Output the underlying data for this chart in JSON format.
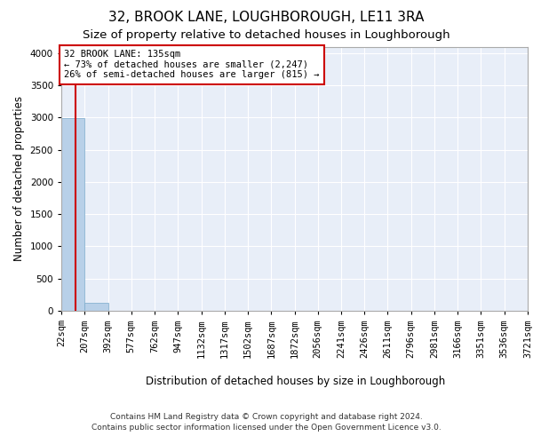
{
  "title": "32, BROOK LANE, LOUGHBOROUGH, LE11 3RA",
  "subtitle": "Size of property relative to detached houses in Loughborough",
  "xlabel": "Distribution of detached houses by size in Loughborough",
  "ylabel": "Number of detached properties",
  "footer_line1": "Contains HM Land Registry data © Crown copyright and database right 2024.",
  "footer_line2": "Contains public sector information licensed under the Open Government Licence v3.0.",
  "bin_edges": [
    22,
    207,
    392,
    577,
    762,
    947,
    1132,
    1317,
    1502,
    1687,
    1872,
    2056,
    2241,
    2426,
    2611,
    2796,
    2981,
    3166,
    3351,
    3536,
    3721
  ],
  "bar_heights": [
    2990,
    120,
    0,
    0,
    0,
    0,
    0,
    0,
    0,
    0,
    0,
    0,
    0,
    0,
    0,
    0,
    0,
    0,
    0,
    0
  ],
  "bar_color": "#b8d0e8",
  "bar_edgecolor": "#7aaaca",
  "background_color": "#e8eef8",
  "property_size": 135,
  "property_line_color": "#cc0000",
  "annotation_line1": "32 BROOK LANE: 135sqm",
  "annotation_line2": "← 73% of detached houses are smaller (2,247)",
  "annotation_line3": "26% of semi-detached houses are larger (815) →",
  "annotation_box_color": "#cc0000",
  "ylim": [
    0,
    4100
  ],
  "yticks": [
    0,
    500,
    1000,
    1500,
    2000,
    2500,
    3000,
    3500,
    4000
  ],
  "grid_color": "#ffffff",
  "title_fontsize": 11,
  "subtitle_fontsize": 9.5,
  "axis_label_fontsize": 8.5,
  "tick_fontsize": 7.5,
  "annotation_fontsize": 7.5,
  "footer_fontsize": 6.5
}
